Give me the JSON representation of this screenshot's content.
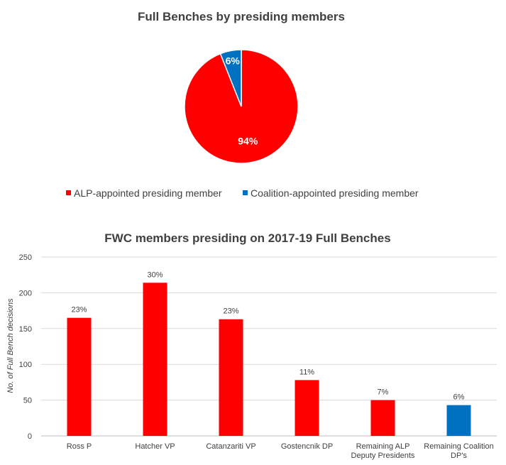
{
  "chart_data": [
    {
      "type": "pie",
      "title": "Full Benches by presiding members",
      "slices": [
        {
          "label": "ALP-appointed presiding member",
          "value": 94,
          "display": "94%",
          "color": "#ff0000"
        },
        {
          "label": "Coalition-appointed presiding member",
          "value": 6,
          "display": "6%",
          "color": "#0070c0"
        }
      ],
      "legend_position": "bottom"
    },
    {
      "type": "bar",
      "title": "FWC members presiding on 2017-19 Full Benches",
      "ylabel": "No. of Full Bench decisions",
      "xlabel": "",
      "ylim": [
        0,
        250
      ],
      "yticks": [
        0,
        50,
        100,
        150,
        200,
        250
      ],
      "grid": true,
      "categories": [
        [
          "Ross P"
        ],
        [
          "Hatcher VP"
        ],
        [
          "Catanzariti VP"
        ],
        [
          "Gostencnik DP"
        ],
        [
          "Remaining ALP",
          "Deputy Presidents"
        ],
        [
          "Remaining Coalition",
          "DP's"
        ]
      ],
      "values": [
        165,
        214,
        163,
        78,
        50,
        43
      ],
      "data_labels": [
        "23%",
        "30%",
        "23%",
        "11%",
        "7%",
        "6%"
      ],
      "colors": [
        "#ff0000",
        "#ff0000",
        "#ff0000",
        "#ff0000",
        "#ff0000",
        "#0070c0"
      ]
    }
  ]
}
